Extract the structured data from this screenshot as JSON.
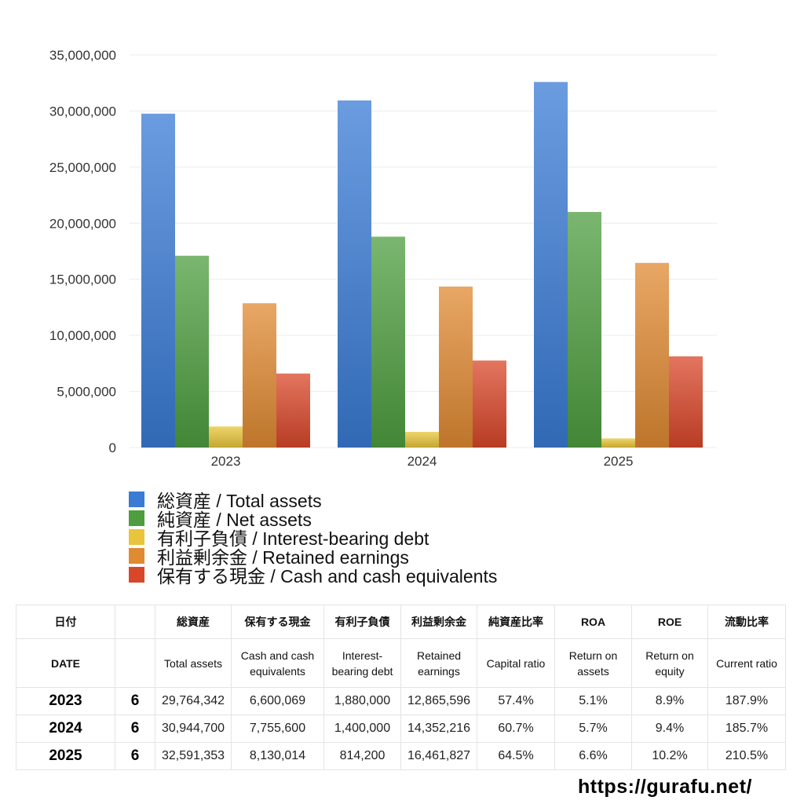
{
  "chart_data": {
    "type": "bar",
    "categories": [
      "2023",
      "2024",
      "2025"
    ],
    "ylim": [
      0,
      35000000
    ],
    "yticks": [
      "0",
      "5,000,000",
      "10,000,000",
      "15,000,000",
      "20,000,000",
      "25,000,000",
      "30,000,000",
      "35,000,000"
    ],
    "grid": true,
    "legend_position": "bottom",
    "series": [
      {
        "name": "総資産 / Total assets",
        "color": "#3a7bd5",
        "values": [
          29764342,
          30944700,
          32591353
        ]
      },
      {
        "name": "純資産 / Net assets",
        "color": "#4e9e3f",
        "values": [
          17100000,
          18800000,
          21000000
        ]
      },
      {
        "name": "有利子負債 / Interest-bearing debt",
        "color": "#e8c53a",
        "values": [
          1880000,
          1400000,
          814200
        ]
      },
      {
        "name": "利益剰余金 / Retained earnings",
        "color": "#e08a32",
        "values": [
          12865596,
          14352216,
          16461827
        ]
      },
      {
        "name": "保有する現金 /  Cash and cash equivalents",
        "color": "#d9472a",
        "values": [
          6600069,
          7755600,
          8130014
        ]
      }
    ]
  },
  "table": {
    "header_jp": [
      "日付",
      "",
      "総資産",
      "保有する現金",
      "有利子負債",
      "利益剰余金",
      "純資産比率",
      "ROA",
      "ROE",
      "流動比率"
    ],
    "header_en": [
      "DATE",
      "",
      "Total assets",
      "Cash and cash equivalents",
      "Interest-bearing debt",
      "Retained earnings",
      "Capital ratio",
      "Return on assets",
      "Return on equity",
      "Current ratio"
    ],
    "rows": [
      [
        "2023",
        "6",
        "29,764,342",
        "6,600,069",
        "1,880,000",
        "12,865,596",
        "57.4%",
        "5.1%",
        "8.9%",
        "187.9%"
      ],
      [
        "2024",
        "6",
        "30,944,700",
        "7,755,600",
        "1,400,000",
        "14,352,216",
        "60.7%",
        "5.7%",
        "9.4%",
        "185.7%"
      ],
      [
        "2025",
        "6",
        "32,591,353",
        "8,130,014",
        "814,200",
        "16,461,827",
        "64.5%",
        "6.6%",
        "10.2%",
        "210.5%"
      ]
    ]
  },
  "source": "https://gurafu.net/"
}
